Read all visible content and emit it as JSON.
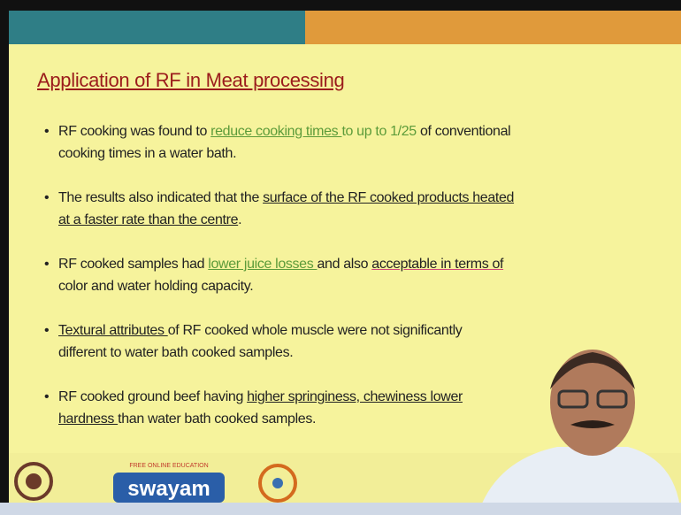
{
  "slide": {
    "title": "Application of RF in Meat processing",
    "bullets": [
      [
        "RF cooking was found to ",
        "reduce cooking times ",
        "to up to 1/25",
        " of conventional",
        "cooking times in a water bath."
      ],
      [
        "The results also indicated that the ",
        "surface of the RF cooked products heated",
        "at a faster rate than the centre",
        "."
      ],
      [
        "RF cooked samples had ",
        "lower juice losses ",
        "and also ",
        "acceptable in terms of",
        "color and water holding capacity."
      ],
      [
        "Textural attributes ",
        "of RF cooked whole muscle were not significantly",
        "different to water bath cooked samples."
      ],
      [
        "RF cooked ground beef having ",
        "higher springiness, chewiness lower",
        "hardness ",
        "than water bath cooked samples."
      ]
    ]
  },
  "footer": {
    "logo_tagline": "FREE ONLINE EDUCATION",
    "logo_text": "swayam"
  }
}
